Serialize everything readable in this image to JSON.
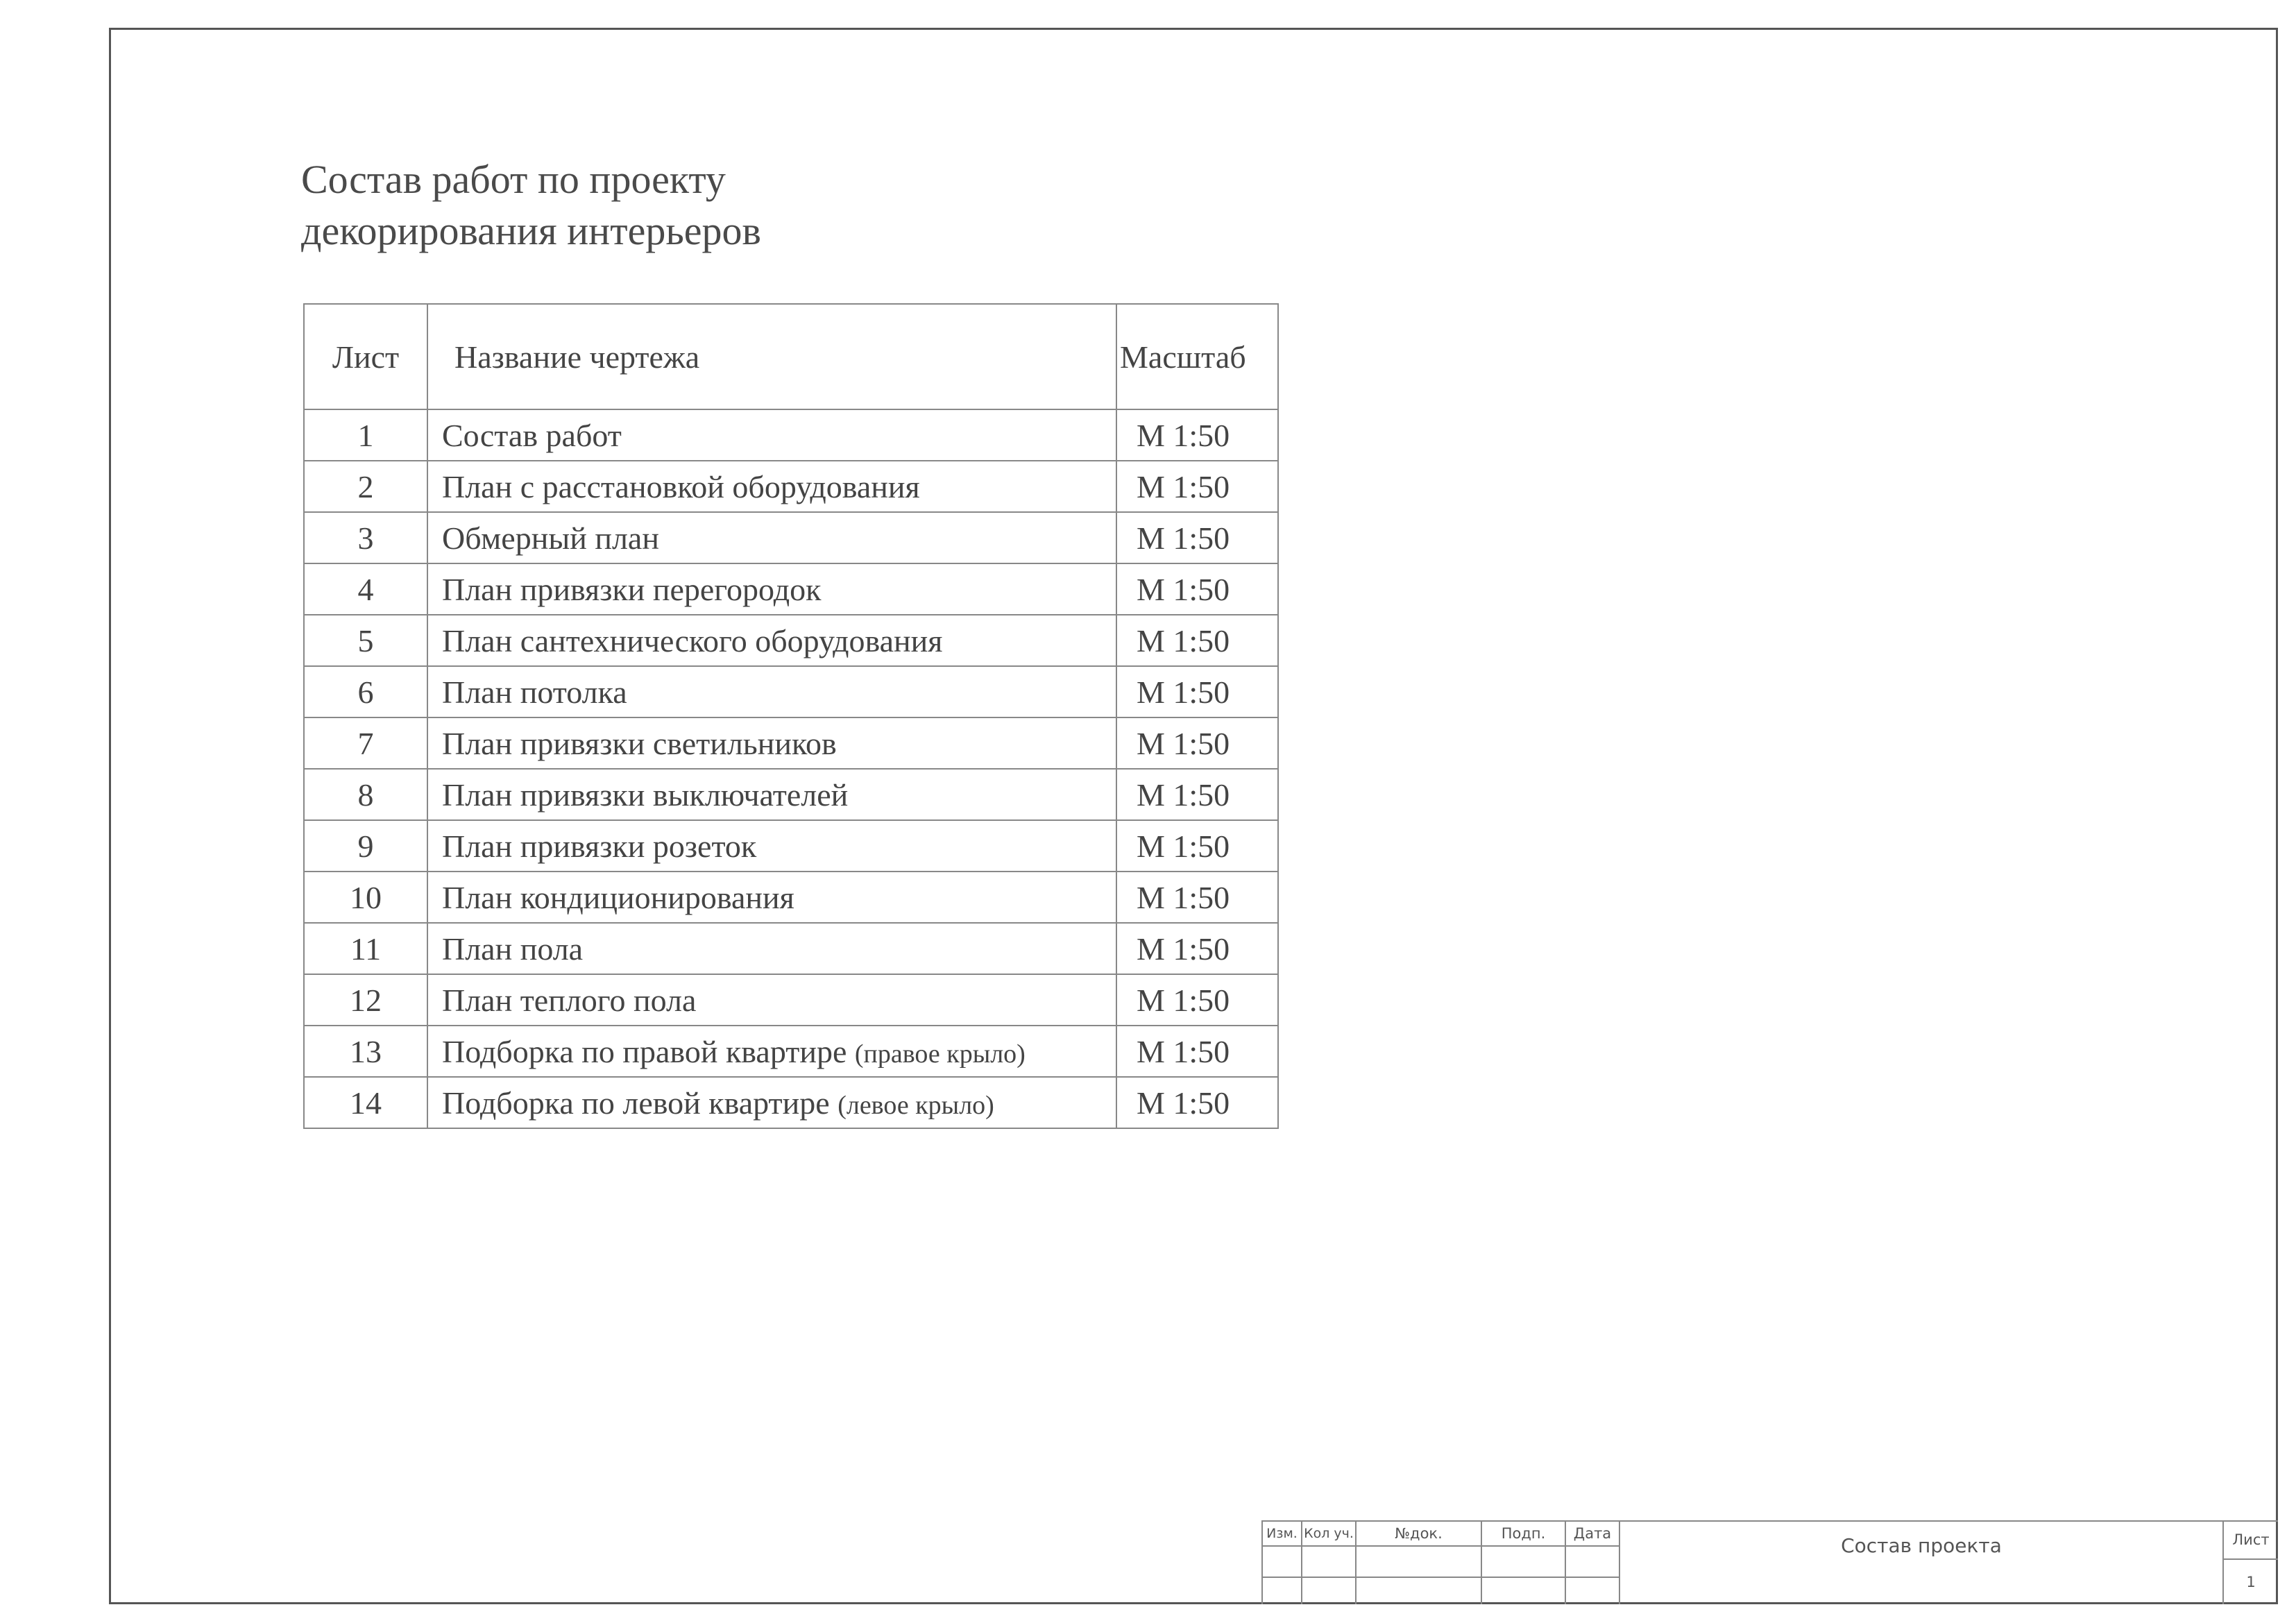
{
  "title_lines": [
    "Состав работ по проекту",
    "декорирования интерьеров"
  ],
  "table": {
    "headers": [
      "Лист",
      "Название чертежа",
      "Масштаб"
    ],
    "rows": [
      {
        "sheet": "1",
        "name": "Состав работ",
        "note": "",
        "scale": "М 1:50"
      },
      {
        "sheet": "2",
        "name": "План с расстановкой оборудования",
        "note": "",
        "scale": "М 1:50"
      },
      {
        "sheet": "3",
        "name": "Обмерный план",
        "note": "",
        "scale": "М 1:50"
      },
      {
        "sheet": "4",
        "name": "План привязки перегородок",
        "note": "",
        "scale": "М 1:50"
      },
      {
        "sheet": "5",
        "name": "План сантехнического оборудования",
        "note": "",
        "scale": "М 1:50"
      },
      {
        "sheet": "6",
        "name": "План потолка",
        "note": "",
        "scale": "М 1:50"
      },
      {
        "sheet": "7",
        "name": "План привязки светильников",
        "note": "",
        "scale": "М 1:50"
      },
      {
        "sheet": "8",
        "name": "План привязки выключателей",
        "note": "",
        "scale": "М 1:50"
      },
      {
        "sheet": "9",
        "name": "План привязки розеток",
        "note": "",
        "scale": "М 1:50"
      },
      {
        "sheet": "10",
        "name": "План кондиционирования",
        "note": "",
        "scale": "М 1:50"
      },
      {
        "sheet": "11",
        "name": "План пола",
        "note": "",
        "scale": "М 1:50"
      },
      {
        "sheet": "12",
        "name": "План теплого пола",
        "note": "",
        "scale": "М 1:50"
      },
      {
        "sheet": "13",
        "name": "Подборка по правой квартире",
        "note": "(правое крыло)",
        "scale": "М 1:50"
      },
      {
        "sheet": "14",
        "name": "Подборка по левой квартире",
        "note": "(левое крыло)",
        "scale": "М 1:50"
      }
    ]
  },
  "title_block": {
    "headers": [
      "Изм.",
      "Кол уч.",
      "№док.",
      "Подп.",
      "Дата"
    ],
    "document_name": "Состав проекта",
    "sheet_label": "Лист",
    "sheet_number": "1"
  }
}
